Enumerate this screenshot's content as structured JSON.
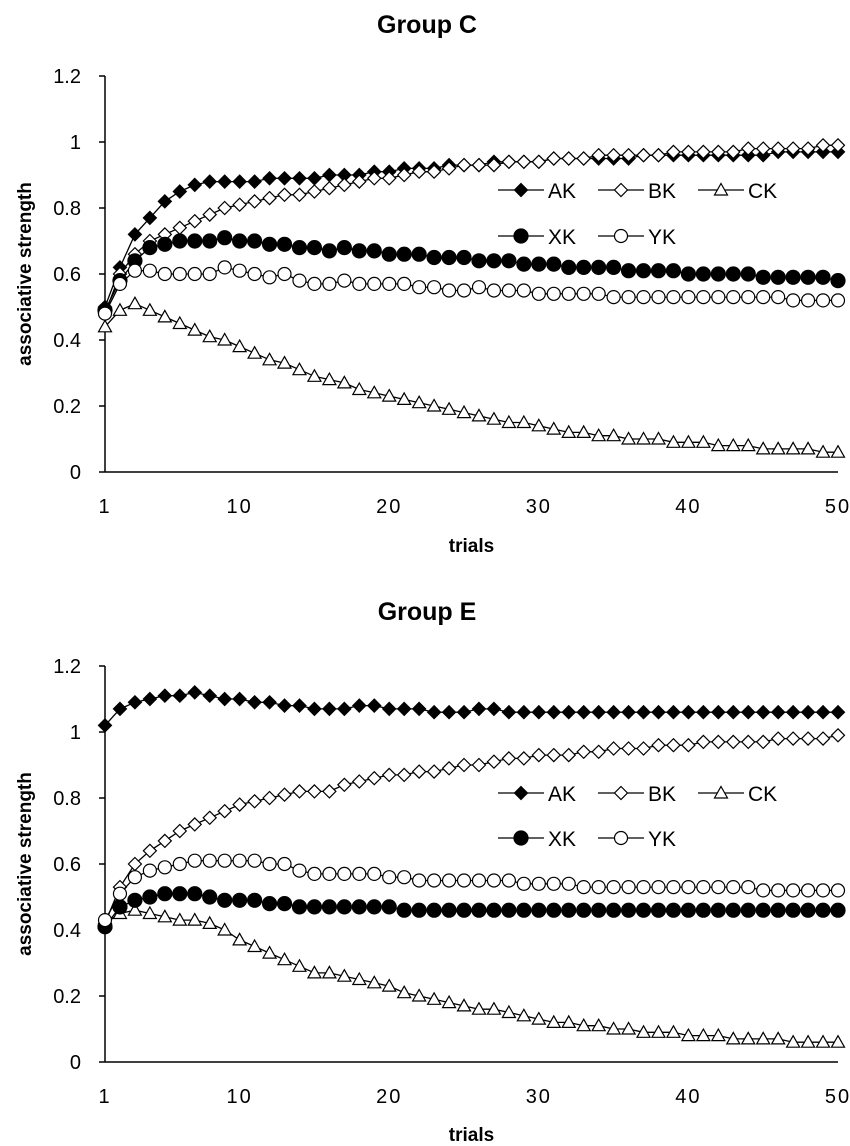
{
  "chart_data": [
    {
      "type": "line",
      "title": "Group C",
      "xlabel": "trials",
      "ylabel": "associative strength",
      "xlim": [
        1,
        50
      ],
      "ylim": [
        0,
        1.2
      ],
      "xticks": [
        1,
        10,
        20,
        30,
        40,
        50
      ],
      "yticks": [
        0,
        0.2,
        0.4,
        0.6,
        0.8,
        1,
        1.2
      ],
      "ytick_labels": [
        "0",
        "0.2",
        "0.4",
        "0.6",
        "0.8",
        "1",
        "1.2"
      ],
      "grid": false,
      "legend_position": "right",
      "series": [
        {
          "name": "AK",
          "marker": "diamond-filled",
          "values": [
            0.5,
            0.62,
            0.72,
            0.77,
            0.82,
            0.85,
            0.87,
            0.88,
            0.88,
            0.88,
            0.88,
            0.89,
            0.89,
            0.89,
            0.89,
            0.9,
            0.9,
            0.9,
            0.91,
            0.91,
            0.92,
            0.92,
            0.92,
            0.93,
            0.93,
            0.93,
            0.94,
            0.94,
            0.94,
            0.94,
            0.95,
            0.95,
            0.95,
            0.95,
            0.95,
            0.95,
            0.96,
            0.96,
            0.96,
            0.96,
            0.96,
            0.96,
            0.96,
            0.96,
            0.96,
            0.97,
            0.97,
            0.97,
            0.97,
            0.97
          ]
        },
        {
          "name": "BK",
          "marker": "diamond-open",
          "values": [
            0.48,
            0.6,
            0.66,
            0.7,
            0.72,
            0.74,
            0.76,
            0.78,
            0.8,
            0.81,
            0.82,
            0.83,
            0.84,
            0.84,
            0.85,
            0.86,
            0.87,
            0.88,
            0.89,
            0.89,
            0.9,
            0.91,
            0.91,
            0.92,
            0.93,
            0.93,
            0.93,
            0.94,
            0.94,
            0.94,
            0.95,
            0.95,
            0.95,
            0.96,
            0.96,
            0.96,
            0.96,
            0.96,
            0.97,
            0.97,
            0.97,
            0.97,
            0.97,
            0.98,
            0.98,
            0.98,
            0.98,
            0.98,
            0.99,
            0.99
          ]
        },
        {
          "name": "CK",
          "marker": "triangle-open",
          "values": [
            0.44,
            0.49,
            0.51,
            0.49,
            0.47,
            0.45,
            0.43,
            0.41,
            0.4,
            0.38,
            0.36,
            0.34,
            0.33,
            0.31,
            0.29,
            0.28,
            0.27,
            0.25,
            0.24,
            0.23,
            0.22,
            0.21,
            0.2,
            0.19,
            0.18,
            0.17,
            0.16,
            0.15,
            0.15,
            0.14,
            0.13,
            0.12,
            0.12,
            0.11,
            0.11,
            0.1,
            0.1,
            0.1,
            0.09,
            0.09,
            0.09,
            0.08,
            0.08,
            0.08,
            0.07,
            0.07,
            0.07,
            0.07,
            0.06,
            0.06
          ]
        },
        {
          "name": "XK",
          "marker": "circle-filled",
          "values": [
            0.49,
            0.58,
            0.64,
            0.68,
            0.69,
            0.7,
            0.7,
            0.7,
            0.71,
            0.7,
            0.7,
            0.69,
            0.69,
            0.68,
            0.68,
            0.67,
            0.68,
            0.67,
            0.67,
            0.66,
            0.66,
            0.66,
            0.65,
            0.65,
            0.65,
            0.64,
            0.64,
            0.64,
            0.63,
            0.63,
            0.63,
            0.62,
            0.62,
            0.62,
            0.62,
            0.61,
            0.61,
            0.61,
            0.61,
            0.6,
            0.6,
            0.6,
            0.6,
            0.6,
            0.59,
            0.59,
            0.59,
            0.59,
            0.59,
            0.58
          ]
        },
        {
          "name": "YK",
          "marker": "circle-open",
          "values": [
            0.48,
            0.57,
            0.61,
            0.61,
            0.6,
            0.6,
            0.6,
            0.6,
            0.62,
            0.61,
            0.6,
            0.59,
            0.6,
            0.58,
            0.57,
            0.57,
            0.58,
            0.57,
            0.57,
            0.57,
            0.57,
            0.56,
            0.56,
            0.55,
            0.55,
            0.56,
            0.55,
            0.55,
            0.55,
            0.54,
            0.54,
            0.54,
            0.54,
            0.54,
            0.53,
            0.53,
            0.53,
            0.53,
            0.53,
            0.53,
            0.53,
            0.53,
            0.53,
            0.53,
            0.53,
            0.53,
            0.52,
            0.52,
            0.52,
            0.52
          ]
        }
      ]
    },
    {
      "type": "line",
      "title": "Group E",
      "xlabel": "trials",
      "ylabel": "associative strength",
      "xlim": [
        1,
        50
      ],
      "ylim": [
        0,
        1.2
      ],
      "xticks": [
        1,
        10,
        20,
        30,
        40,
        50
      ],
      "yticks": [
        0,
        0.2,
        0.4,
        0.6,
        0.8,
        1,
        1.2
      ],
      "ytick_labels": [
        "0",
        "0.2",
        "0.4",
        "0.6",
        "0.8",
        "1",
        "1.2"
      ],
      "grid": false,
      "legend_position": "right",
      "series": [
        {
          "name": "AK",
          "marker": "diamond-filled",
          "values": [
            1.02,
            1.07,
            1.09,
            1.1,
            1.11,
            1.11,
            1.12,
            1.11,
            1.1,
            1.1,
            1.09,
            1.09,
            1.08,
            1.08,
            1.07,
            1.07,
            1.07,
            1.08,
            1.08,
            1.07,
            1.07,
            1.07,
            1.06,
            1.06,
            1.06,
            1.07,
            1.07,
            1.06,
            1.06,
            1.06,
            1.06,
            1.06,
            1.06,
            1.06,
            1.06,
            1.06,
            1.06,
            1.06,
            1.06,
            1.06,
            1.06,
            1.06,
            1.06,
            1.06,
            1.06,
            1.06,
            1.06,
            1.06,
            1.06,
            1.06
          ]
        },
        {
          "name": "BK",
          "marker": "diamond-open",
          "values": [
            0.42,
            0.53,
            0.6,
            0.64,
            0.67,
            0.7,
            0.72,
            0.74,
            0.76,
            0.78,
            0.79,
            0.8,
            0.81,
            0.82,
            0.82,
            0.82,
            0.84,
            0.85,
            0.86,
            0.87,
            0.87,
            0.88,
            0.88,
            0.89,
            0.9,
            0.9,
            0.91,
            0.92,
            0.92,
            0.93,
            0.93,
            0.93,
            0.94,
            0.94,
            0.95,
            0.95,
            0.95,
            0.96,
            0.96,
            0.96,
            0.97,
            0.97,
            0.97,
            0.97,
            0.97,
            0.98,
            0.98,
            0.98,
            0.98,
            0.99
          ]
        },
        {
          "name": "CK",
          "marker": "triangle-open",
          "values": [
            0.42,
            0.45,
            0.46,
            0.45,
            0.44,
            0.43,
            0.43,
            0.42,
            0.4,
            0.37,
            0.35,
            0.33,
            0.31,
            0.29,
            0.27,
            0.27,
            0.26,
            0.25,
            0.24,
            0.23,
            0.21,
            0.2,
            0.19,
            0.18,
            0.17,
            0.16,
            0.16,
            0.15,
            0.14,
            0.13,
            0.12,
            0.12,
            0.11,
            0.11,
            0.1,
            0.1,
            0.09,
            0.09,
            0.09,
            0.08,
            0.08,
            0.08,
            0.07,
            0.07,
            0.07,
            0.07,
            0.06,
            0.06,
            0.06,
            0.06
          ]
        },
        {
          "name": "XK",
          "marker": "circle-filled",
          "values": [
            0.41,
            0.47,
            0.49,
            0.5,
            0.51,
            0.51,
            0.51,
            0.5,
            0.49,
            0.49,
            0.49,
            0.48,
            0.48,
            0.47,
            0.47,
            0.47,
            0.47,
            0.47,
            0.47,
            0.47,
            0.46,
            0.46,
            0.46,
            0.46,
            0.46,
            0.46,
            0.46,
            0.46,
            0.46,
            0.46,
            0.46,
            0.46,
            0.46,
            0.46,
            0.46,
            0.46,
            0.46,
            0.46,
            0.46,
            0.46,
            0.46,
            0.46,
            0.46,
            0.46,
            0.46,
            0.46,
            0.46,
            0.46,
            0.46,
            0.46
          ]
        },
        {
          "name": "YK",
          "marker": "circle-open",
          "values": [
            0.43,
            0.51,
            0.56,
            0.58,
            0.59,
            0.6,
            0.61,
            0.61,
            0.61,
            0.61,
            0.61,
            0.6,
            0.6,
            0.58,
            0.57,
            0.57,
            0.57,
            0.57,
            0.57,
            0.56,
            0.56,
            0.55,
            0.55,
            0.55,
            0.55,
            0.55,
            0.55,
            0.55,
            0.54,
            0.54,
            0.54,
            0.54,
            0.53,
            0.53,
            0.53,
            0.53,
            0.53,
            0.53,
            0.53,
            0.53,
            0.53,
            0.53,
            0.53,
            0.53,
            0.52,
            0.52,
            0.52,
            0.52,
            0.52,
            0.52
          ]
        }
      ]
    }
  ]
}
